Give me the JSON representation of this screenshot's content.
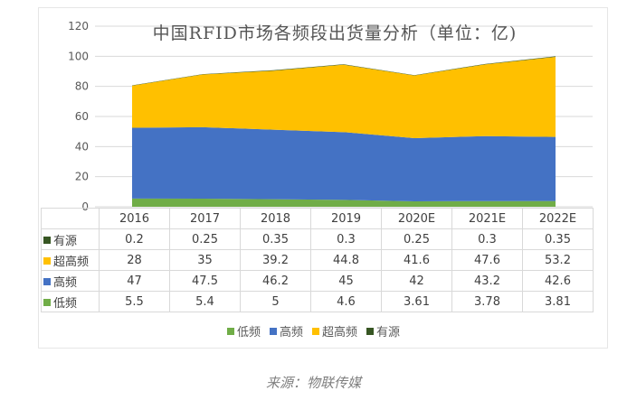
{
  "chart_data": {
    "type": "area",
    "stacked": true,
    "title": "中国RFID市场各频段出货量分析（单位：亿)",
    "categories": [
      "2016",
      "2017",
      "2018",
      "2019",
      "2020E",
      "2021E",
      "2022E"
    ],
    "ylim": [
      0,
      120
    ],
    "yticks": [
      "0",
      "20",
      "40",
      "60",
      "80",
      "100",
      "120"
    ],
    "grid": true,
    "legend_position": "bottom",
    "series": [
      {
        "name": "低频",
        "color": "#70ad47",
        "values": [
          5.5,
          5.4,
          5,
          4.6,
          3.61,
          3.78,
          3.81
        ],
        "labels": [
          "5.5",
          "5.4",
          "5",
          "4.6",
          "3.61",
          "3.78",
          "3.81"
        ]
      },
      {
        "name": "高频",
        "color": "#4472c4",
        "values": [
          47,
          47.5,
          46.2,
          45,
          42,
          43.2,
          42.6
        ],
        "labels": [
          "47",
          "47.5",
          "46.2",
          "45",
          "42",
          "43.2",
          "42.6"
        ]
      },
      {
        "name": "超高频",
        "color": "#ffc000",
        "values": [
          28,
          35,
          39.2,
          44.8,
          41.6,
          47.6,
          53.2
        ],
        "labels": [
          "28",
          "35",
          "39.2",
          "44.8",
          "41.6",
          "47.6",
          "53.2"
        ]
      },
      {
        "name": "有源",
        "color": "#375623",
        "values": [
          0.2,
          0.25,
          0.35,
          0.3,
          0.25,
          0.3,
          0.35
        ],
        "labels": [
          "0.2",
          "0.25",
          "0.35",
          "0.3",
          "0.25",
          "0.3",
          "0.35"
        ]
      }
    ],
    "table_row_order": [
      3,
      2,
      1,
      0
    ]
  },
  "source": "来源：物联传媒"
}
